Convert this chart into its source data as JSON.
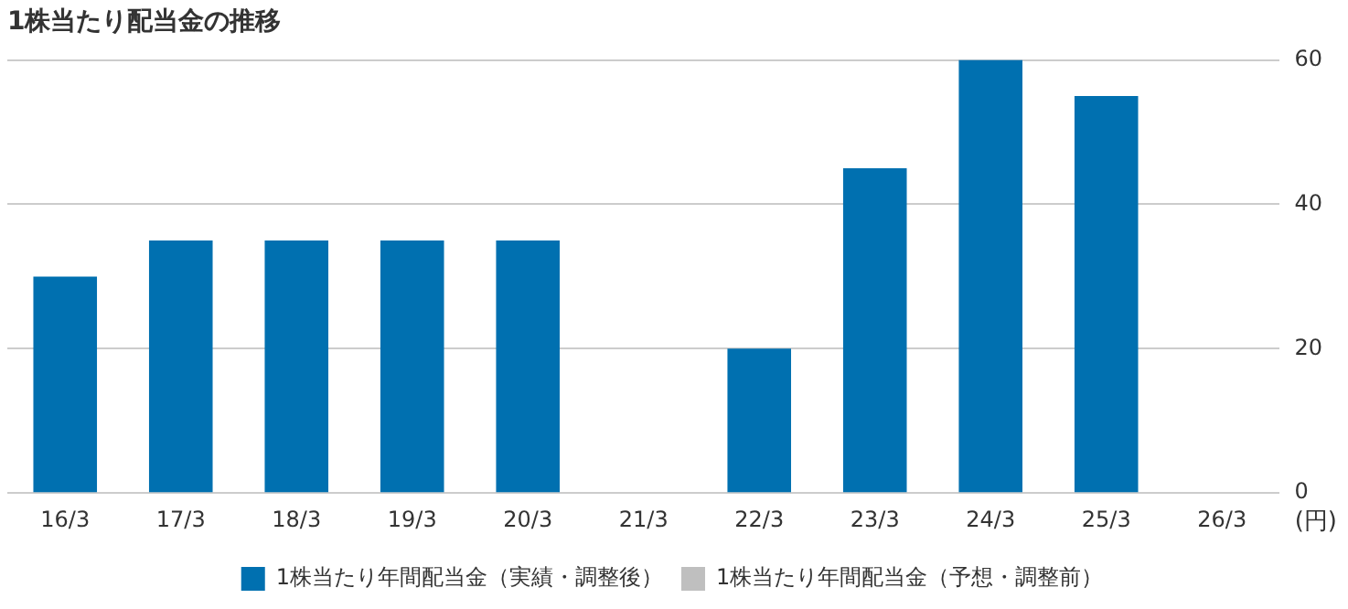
{
  "chart_data": {
    "type": "bar",
    "title": "1株当たり配当金の推移",
    "ylabel": "(円)",
    "categories": [
      "16/3",
      "17/3",
      "18/3",
      "19/3",
      "20/3",
      "21/3",
      "22/3",
      "23/3",
      "24/3",
      "25/3",
      "26/3"
    ],
    "series": [
      {
        "name": "1株当たり年間配当金（実績・調整後）",
        "color": "#0070b0",
        "values": [
          30,
          35,
          35,
          35,
          35,
          null,
          20,
          45,
          60,
          55,
          null
        ]
      },
      {
        "name": "1株当たり年間配当金（予想・調整前）",
        "color": "#bfbfbf",
        "values": [
          null,
          null,
          null,
          null,
          null,
          null,
          null,
          null,
          null,
          null,
          null
        ]
      }
    ],
    "stacked": true,
    "ylim": [
      0,
      60
    ],
    "yticks": [
      0,
      20,
      40,
      60
    ],
    "grid": "y",
    "legend": "bottom"
  }
}
